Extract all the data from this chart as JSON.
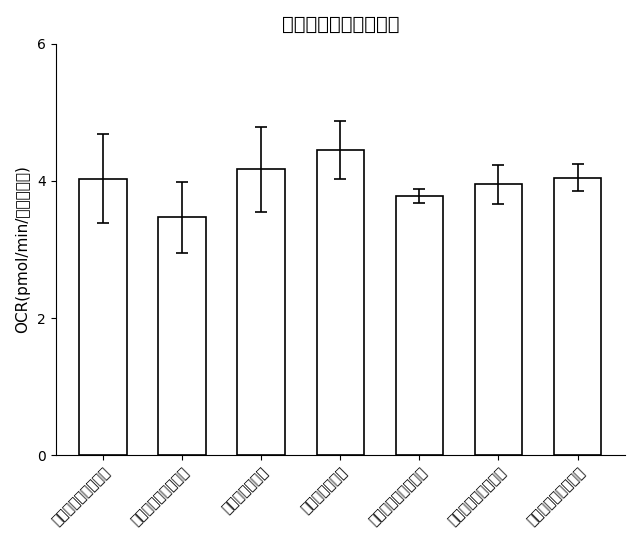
{
  "title": "非ミトコンドリア呆吸",
  "ylabel": "OCR(pmol/min/タンパク貪)",
  "categories": [
    "第１の比較実施形態",
    "第２の比較実施形態",
    "第２の実施形態",
    "第１の実施形態",
    "第３の比較実施形態",
    "第４の比較実施形態",
    "第５の比較実施形態"
  ],
  "values": [
    4.03,
    3.47,
    4.17,
    4.45,
    3.78,
    3.95,
    4.05
  ],
  "errors": [
    0.65,
    0.52,
    0.62,
    0.42,
    0.1,
    0.28,
    0.2
  ],
  "ylim": [
    0,
    6
  ],
  "yticks": [
    0,
    2,
    4,
    6
  ],
  "bar_color": "#ffffff",
  "bar_edgecolor": "#000000",
  "error_color": "#000000",
  "background_color": "#ffffff",
  "title_fontsize": 14,
  "ylabel_fontsize": 11,
  "tick_fontsize": 10,
  "bar_width": 0.6
}
